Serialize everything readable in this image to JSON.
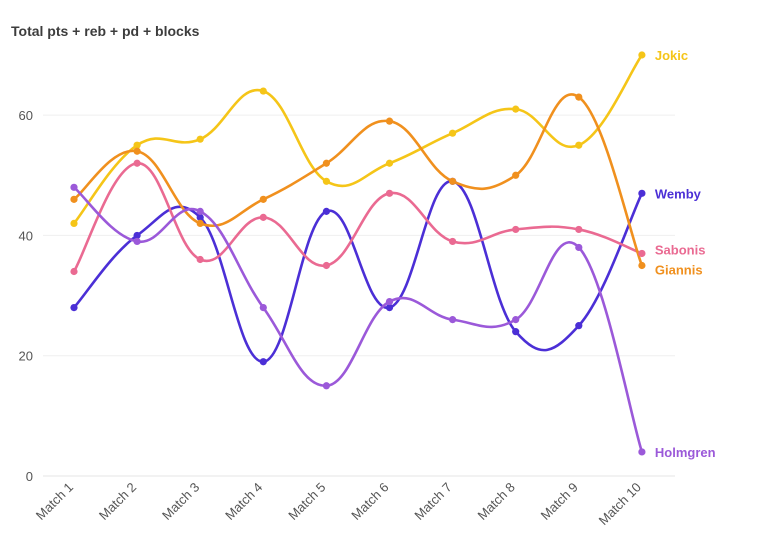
{
  "chart_data": {
    "type": "line",
    "title": "Total pts + reb + pd + blocks",
    "xlabel": "",
    "ylabel": "",
    "categories": [
      "Match 1",
      "Match 2",
      "Match 3",
      "Match 4",
      "Match 5",
      "Match 6",
      "Match 7",
      "Match 8",
      "Match 9",
      "Match 10"
    ],
    "ylim": [
      0,
      70
    ],
    "yticks": [
      0,
      20,
      40,
      60
    ],
    "grid": "horizontal",
    "legend": "inline labels at line ends",
    "series": [
      {
        "name": "Jokic",
        "color": "#f5c518",
        "values": [
          42,
          55,
          56,
          64,
          49,
          52,
          57,
          61,
          55,
          70
        ]
      },
      {
        "name": "Wemby",
        "color": "#4b2fd6",
        "values": [
          28,
          40,
          43,
          19,
          44,
          28,
          49,
          24,
          25,
          47
        ]
      },
      {
        "name": "Sabonis",
        "color": "#ea6a92",
        "values": [
          34,
          52,
          36,
          43,
          35,
          47,
          39,
          41,
          41,
          37
        ]
      },
      {
        "name": "Giannis",
        "color": "#f0901e",
        "values": [
          46,
          54,
          42,
          46,
          52,
          59,
          49,
          50,
          63,
          35
        ]
      },
      {
        "name": "Holmgren",
        "color": "#9b59d9",
        "values": [
          48,
          39,
          44,
          28,
          15,
          29,
          26,
          26,
          38,
          4
        ]
      }
    ]
  }
}
